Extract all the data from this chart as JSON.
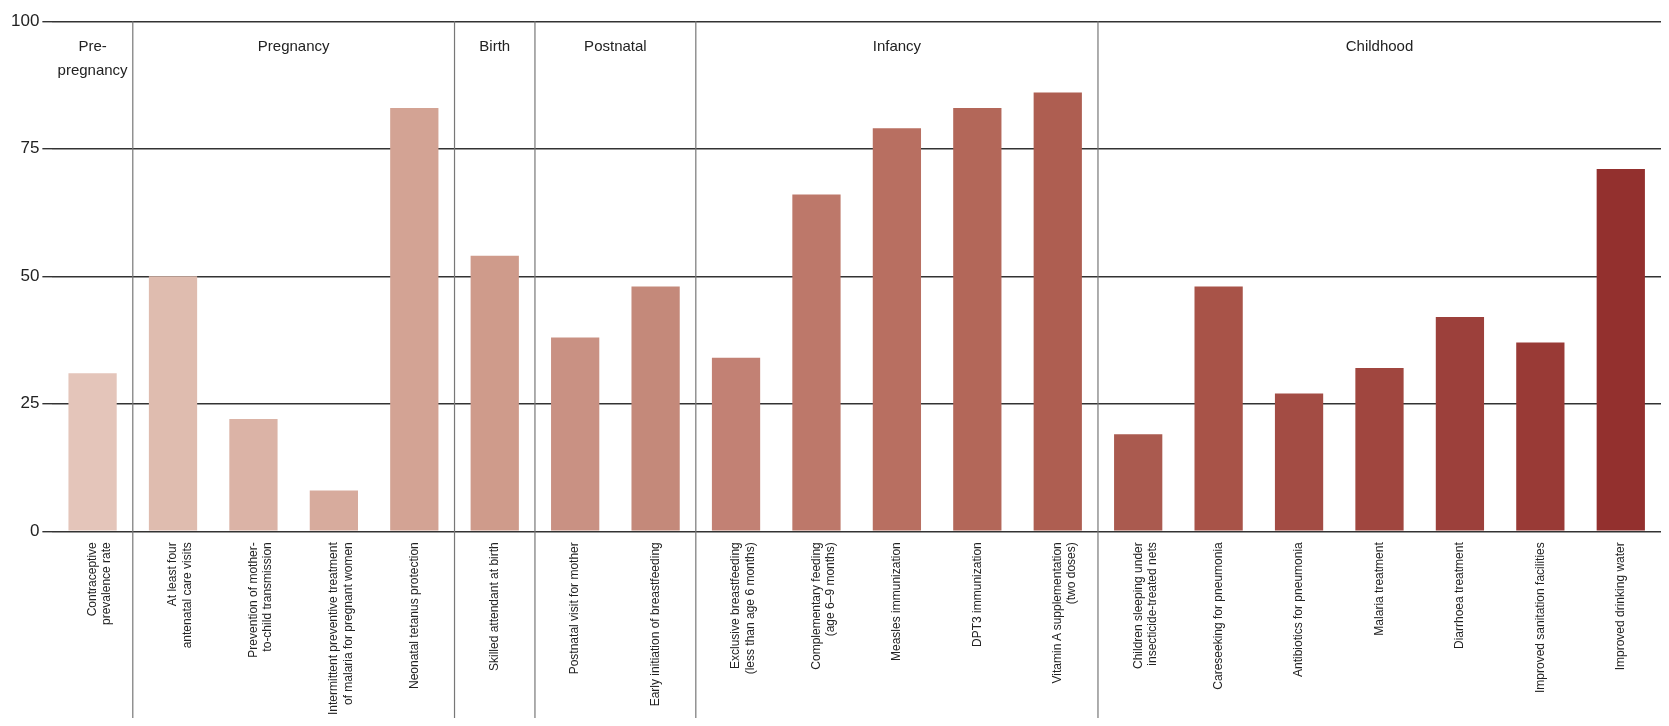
{
  "chart_data": {
    "type": "bar",
    "categories": [
      "Contraceptive\nprevalence rate",
      "At least four\nantenatal care visits",
      "Prevention of mother-\nto-child transmission",
      "Intermittent preventive treatment\nof malaria for pregnant women",
      "Neonatal tetanus protection",
      "Skilled attendant at birth",
      "Postnatal visit for mother",
      "Early initiation of breastfeeding",
      "Exclusive breastfeeding\n(less than age 6 months)",
      "Complementary feeding\n(age 6–9 months)",
      "Measles immunization",
      "DPT3 immunization",
      "Vitamin A supplementation\n(two doses)",
      "Children sleeping under\ninsecticide-treated nets",
      "Careseeking for pneumonia",
      "Antibiotics for pneumonia",
      "Malaria treatment",
      "Diarrhoea treatment",
      "Improved sanitation facilities",
      "Improved drinking water"
    ],
    "values": [
      31,
      50,
      22,
      8,
      83,
      54,
      38,
      48,
      34,
      66,
      79,
      83,
      86,
      19,
      48,
      27,
      32,
      42,
      37,
      71
    ],
    "colors": [
      "#e4c5ba",
      "#dfbcaf",
      "#dbb3a6",
      "#d7ab9d",
      "#d3a394",
      "#cf9b8b",
      "#c99183",
      "#c4897a",
      "#c28174",
      "#bd786a",
      "#b86f61",
      "#b36759",
      "#ae5e51",
      "#aa5a4f",
      "#a85348",
      "#a34c44",
      "#a0463f",
      "#9c403b",
      "#993a36",
      "#93302e"
    ],
    "ylim": [
      0,
      100
    ],
    "yticks": [
      0,
      25,
      50,
      75,
      100
    ],
    "grid": "y",
    "legend": false,
    "annotations": [
      "Pre-\npregnancy",
      "Pregnancy",
      "Birth",
      "Postnatal",
      "Infancy",
      "Childhood"
    ]
  }
}
